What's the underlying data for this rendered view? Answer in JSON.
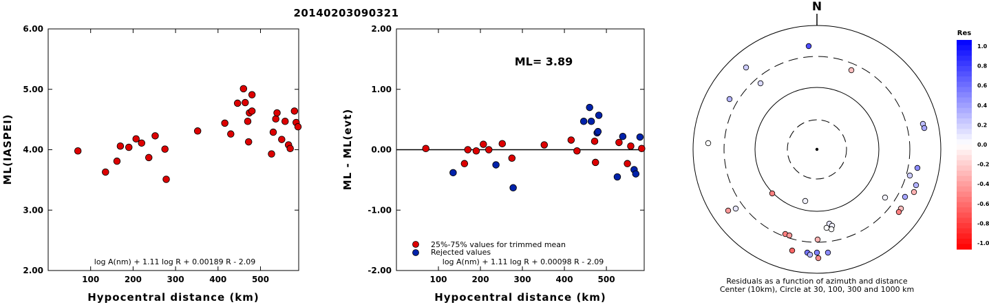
{
  "title": "20140203090321",
  "chart_data": [
    {
      "type": "scatter",
      "xlabel": "Hypocentral distance (km)",
      "ylabel": "ML(IASPEI)",
      "xlim": [
        0,
        590
      ],
      "ylim": [
        2.0,
        6.0
      ],
      "xticks": [
        "100",
        "200",
        "300",
        "400",
        "500"
      ],
      "yticks": [
        "2.00",
        "3.00",
        "4.00",
        "5.00",
        "6.00"
      ],
      "formula": "log A(nm) + 1.11 log R + 0.00189 R - 2.09",
      "series": [
        {
          "color": "#dd0000",
          "x": [
            70,
            135,
            162,
            170,
            190,
            207,
            220,
            237,
            252,
            275,
            278,
            352,
            416,
            430,
            446,
            460,
            464,
            470,
            472,
            474,
            480,
            480,
            526,
            530,
            536,
            539,
            550,
            558,
            566,
            570,
            580,
            584,
            595
          ],
          "y": [
            3.98,
            3.63,
            3.81,
            4.06,
            4.04,
            4.18,
            4.11,
            3.87,
            4.23,
            4.01,
            3.51,
            4.31,
            4.44,
            4.26,
            4.77,
            5.01,
            4.78,
            4.47,
            4.13,
            4.61,
            4.64,
            4.91,
            3.93,
            4.29,
            4.51,
            4.61,
            4.17,
            4.47,
            4.08,
            4.02,
            4.64,
            4.45,
            4.38
          ]
        }
      ]
    },
    {
      "type": "scatter",
      "xlabel": "Hypocentral distance (km)",
      "ylabel": "ML - ML(evt)",
      "xlim": [
        0,
        590
      ],
      "ylim": [
        -2.0,
        2.0
      ],
      "xticks": [
        "100",
        "200",
        "300",
        "400",
        "500"
      ],
      "yticks": [
        "-2.00",
        "-1.00",
        "0.00",
        "1.00",
        "2.00"
      ],
      "ml_label": "ML= 3.89",
      "formula": "log A(nm) + 1.11 log R + 0.00098 R - 2.09",
      "legend": [
        "25%-75% values for trimmed mean",
        "Rejected values"
      ],
      "series": [
        {
          "name": "25%-75% values for trimmed mean",
          "color": "#dd0000",
          "x": [
            70,
            162,
            170,
            190,
            207,
            220,
            252,
            275,
            352,
            416,
            430,
            472,
            474,
            530,
            550,
            558,
            584
          ],
          "y": [
            0.02,
            -0.23,
            0.0,
            -0.02,
            0.09,
            0.0,
            0.1,
            -0.14,
            0.08,
            0.16,
            -0.02,
            0.14,
            -0.21,
            0.12,
            -0.23,
            0.06,
            0.02
          ]
        },
        {
          "name": "Rejected values",
          "color": "#0022aa",
          "x": [
            135,
            237,
            278,
            446,
            460,
            464,
            478,
            480,
            482,
            526,
            539,
            566,
            570,
            580
          ],
          "y": [
            -0.38,
            -0.25,
            -0.63,
            0.47,
            0.7,
            0.47,
            0.28,
            0.3,
            0.57,
            -0.45,
            0.22,
            -0.33,
            -0.4,
            0.21
          ]
        }
      ]
    },
    {
      "type": "scatter",
      "north_label": "N",
      "caption_line1": "Residuals as a function of azimuth and distance",
      "caption_line2": "Center (10km), Circle at 30, 100, 300 and 1000 km",
      "colorbar_title": "Res",
      "colorbar_ticks": [
        "1.0",
        "0.8",
        "0.6",
        "0.4",
        "0.2",
        "0.0",
        "-0.2",
        "-0.4",
        "-0.6",
        "-0.8",
        "-1.0"
      ],
      "stations": [
        {
          "dx": -12,
          "dy": -150,
          "res": 0.7
        },
        {
          "dx": -103,
          "dy": -119,
          "res": 0.2
        },
        {
          "dx": -82,
          "dy": -96,
          "res": 0.15
        },
        {
          "dx": -127,
          "dy": -73,
          "res": 0.3
        },
        {
          "dx": 50,
          "dy": -115,
          "res": -0.25
        },
        {
          "dx": -158,
          "dy": -9,
          "res": 0.0
        },
        {
          "dx": 154,
          "dy": -37,
          "res": 0.25
        },
        {
          "dx": 156,
          "dy": -31,
          "res": 0.35
        },
        {
          "dx": -65,
          "dy": 64,
          "res": -0.5
        },
        {
          "dx": -17,
          "dy": 75,
          "res": 0.05
        },
        {
          "dx": -129,
          "dy": 89,
          "res": -0.4
        },
        {
          "dx": -118,
          "dy": 86,
          "res": 0.1
        },
        {
          "dx": 99,
          "dy": 70,
          "res": 0.05
        },
        {
          "dx": 146,
          "dy": 27,
          "res": 0.45
        },
        {
          "dx": 135,
          "dy": 38,
          "res": 0.2
        },
        {
          "dx": 144,
          "dy": 52,
          "res": 0.3
        },
        {
          "dx": 141,
          "dy": 62,
          "res": -0.3
        },
        {
          "dx": 128,
          "dy": 69,
          "res": 0.35
        },
        {
          "dx": 122,
          "dy": 86,
          "res": -0.25
        },
        {
          "dx": 119,
          "dy": 91,
          "res": -0.5
        },
        {
          "dx": 18,
          "dy": 108,
          "res": 0.1
        },
        {
          "dx": 22,
          "dy": 111,
          "res": 0.05
        },
        {
          "dx": 21,
          "dy": 116,
          "res": 0.0
        },
        {
          "dx": 14,
          "dy": 114,
          "res": 0.0
        },
        {
          "dx": -46,
          "dy": 123,
          "res": -0.5
        },
        {
          "dx": -40,
          "dy": 125,
          "res": -0.4
        },
        {
          "dx": 1,
          "dy": 131,
          "res": -0.3
        },
        {
          "dx": -36,
          "dy": 147,
          "res": -0.6
        },
        {
          "dx": -14,
          "dy": 150,
          "res": 0.55
        },
        {
          "dx": 0,
          "dy": 150,
          "res": 0.5
        },
        {
          "dx": 16,
          "dy": 150,
          "res": 0.45
        },
        {
          "dx": 2,
          "dy": 158,
          "res": -0.45
        },
        {
          "dx": -10,
          "dy": 153,
          "res": 0.3
        }
      ]
    }
  ]
}
